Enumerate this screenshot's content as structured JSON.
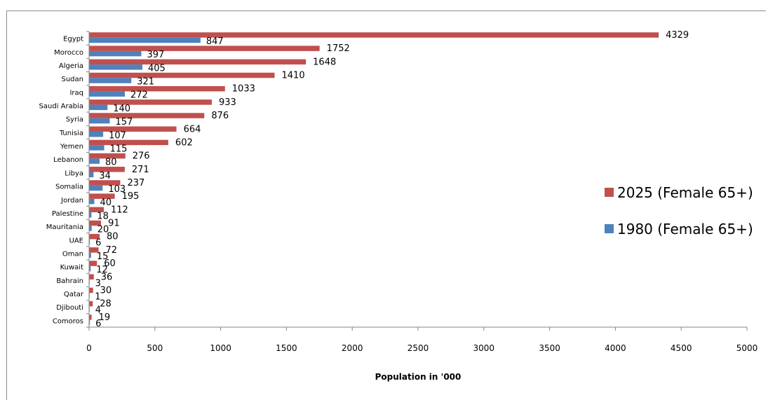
{
  "chart_data": {
    "type": "bar",
    "orientation": "horizontal",
    "categories": [
      "Egypt",
      "Morocco",
      "Algeria",
      "Sudan",
      "Iraq",
      "Saudi Arabia",
      "Syria",
      "Tunisia",
      "Yemen",
      "Lebanon",
      "Libya",
      "Somalia",
      "Jordan",
      "Palestine",
      "Mauritania",
      "UAE",
      "Oman",
      "Kuwait",
      "Bahrain",
      "Qatar",
      "Djibouti",
      "Comoros"
    ],
    "series": [
      {
        "name": "2025 (Female 65+)",
        "color": "#c0504d",
        "values": [
          4329,
          1752,
          1648,
          1410,
          1033,
          933,
          876,
          664,
          602,
          276,
          271,
          237,
          195,
          112,
          91,
          80,
          72,
          60,
          36,
          30,
          28,
          19
        ]
      },
      {
        "name": "1980 (Female 65+)",
        "color": "#4f81bd",
        "values": [
          847,
          397,
          405,
          321,
          272,
          140,
          157,
          107,
          115,
          80,
          34,
          103,
          40,
          18,
          20,
          6,
          15,
          12,
          3,
          1,
          4,
          6
        ]
      }
    ],
    "xlabel": "Population in '000",
    "xlim": [
      0,
      5000
    ],
    "xticks": [
      0,
      500,
      1000,
      1500,
      2000,
      2500,
      3000,
      3500,
      4000,
      4500,
      5000
    ],
    "grid": false,
    "legend_position": "right"
  }
}
